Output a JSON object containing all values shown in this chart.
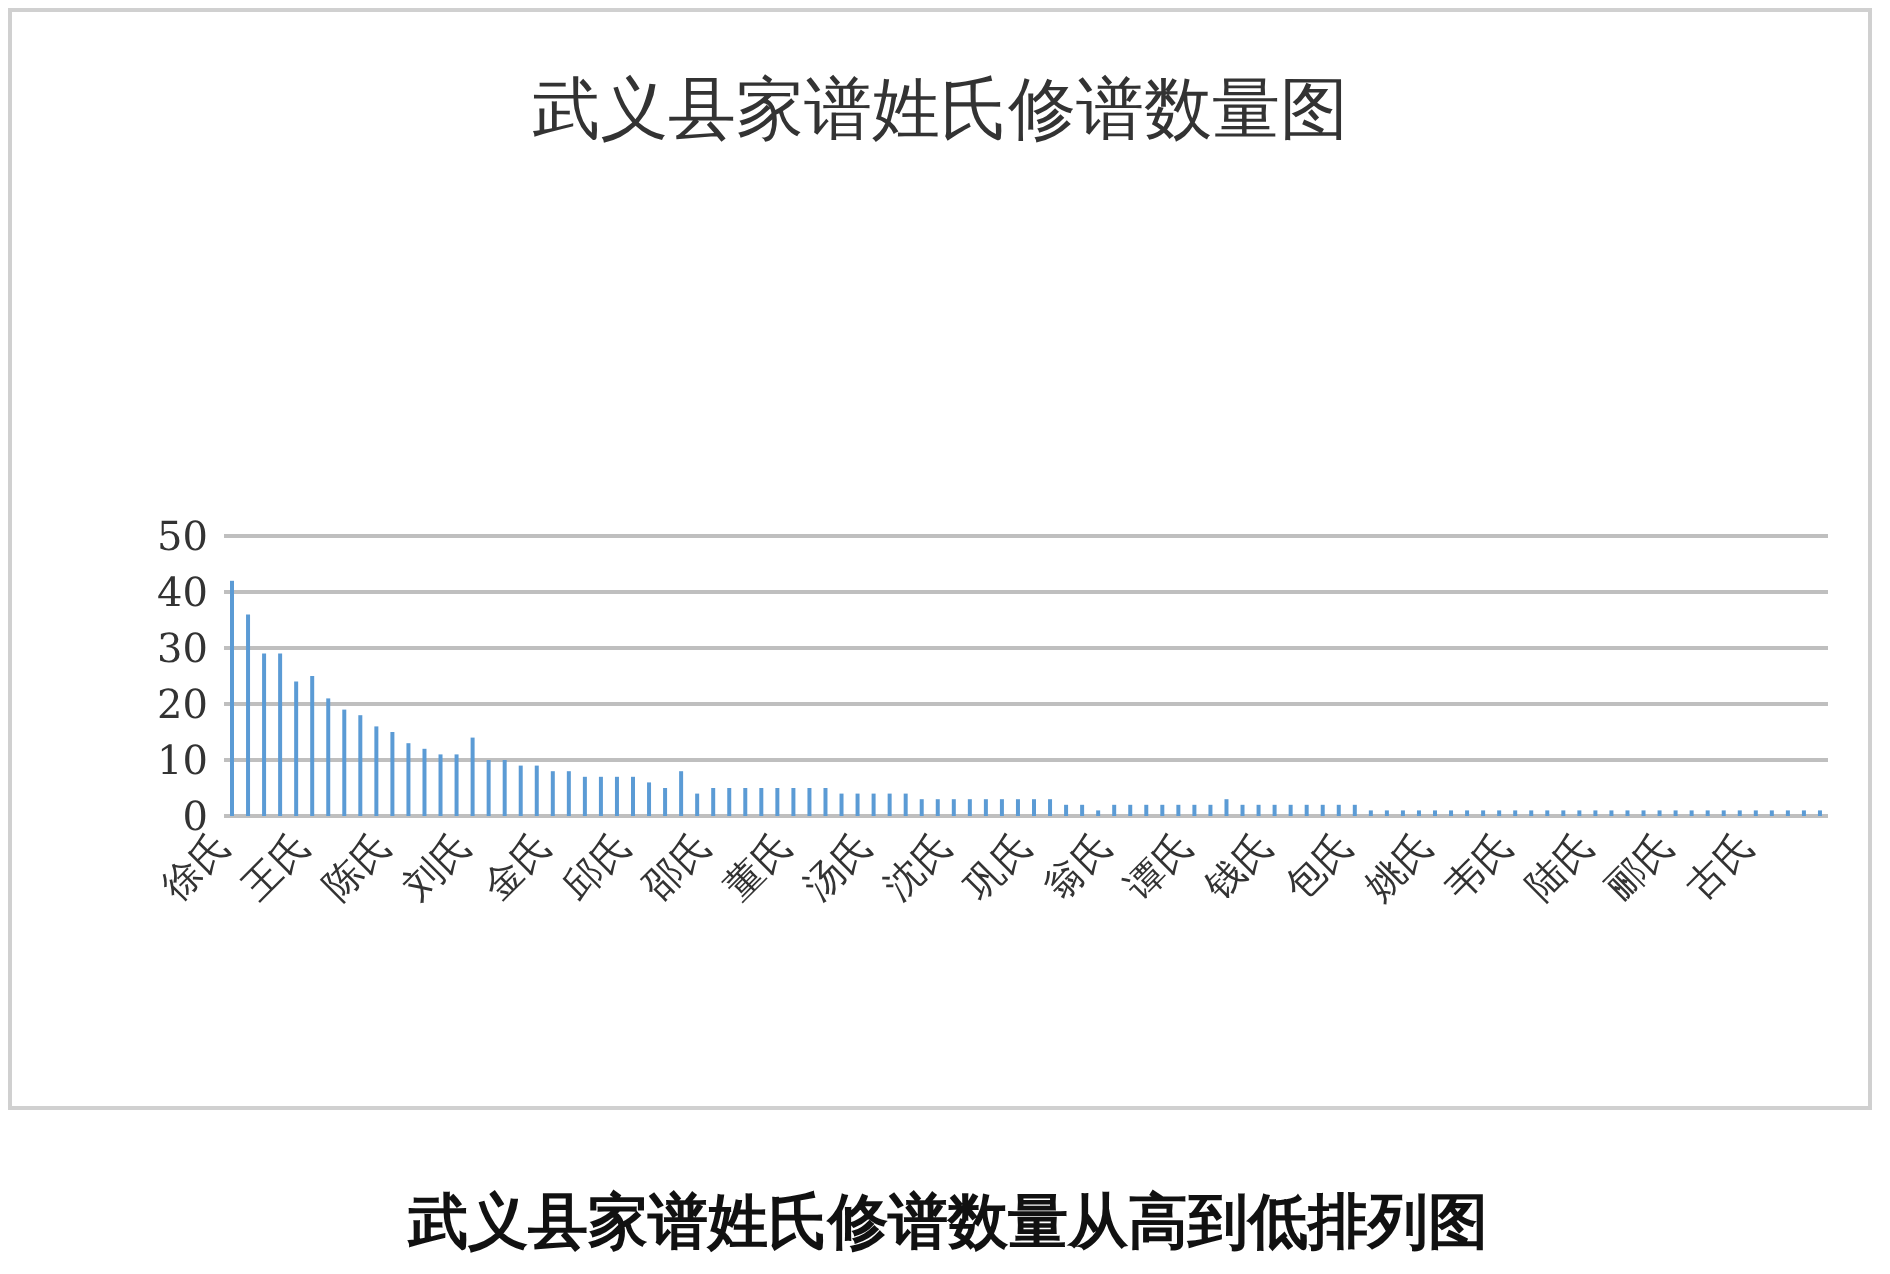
{
  "chart_data": {
    "type": "bar",
    "title": "武义县家谱姓氏修谱数量图",
    "categories": [
      "徐氏",
      null,
      null,
      null,
      null,
      "王氏",
      null,
      null,
      null,
      null,
      "陈氏",
      null,
      null,
      null,
      null,
      "刘氏",
      null,
      null,
      null,
      null,
      "金氏",
      null,
      null,
      null,
      null,
      "邱氏",
      null,
      null,
      null,
      null,
      "邵氏",
      null,
      null,
      null,
      null,
      "董氏",
      null,
      null,
      null,
      null,
      "汤氏",
      null,
      null,
      null,
      null,
      "沈氏",
      null,
      null,
      null,
      null,
      "巩氏",
      null,
      null,
      null,
      null,
      "翁氏",
      null,
      null,
      null,
      null,
      "谭氏",
      null,
      null,
      null,
      null,
      "钱氏",
      null,
      null,
      null,
      null,
      "包氏",
      null,
      null,
      null,
      null,
      "姚氏",
      null,
      null,
      null,
      null,
      "韦氏",
      null,
      null,
      null,
      null,
      "陆氏",
      null,
      null,
      null,
      null,
      "郦氏",
      null,
      null,
      null,
      null,
      "古氏",
      null,
      null,
      null,
      null
    ],
    "values": [
      42,
      36,
      29,
      29,
      24,
      25,
      21,
      19,
      18,
      16,
      15,
      13,
      12,
      11,
      11,
      14,
      10,
      10,
      9,
      9,
      8,
      8,
      7,
      7,
      7,
      7,
      6,
      5,
      8,
      4,
      5,
      5,
      5,
      5,
      5,
      5,
      5,
      5,
      4,
      4,
      4,
      4,
      4,
      3,
      3,
      3,
      3,
      3,
      3,
      3,
      3,
      3,
      2,
      2,
      1,
      2,
      2,
      2,
      2,
      2,
      2,
      2,
      3,
      2,
      2,
      2,
      2,
      2,
      2,
      2,
      2,
      1,
      1,
      1,
      1,
      1,
      1,
      1,
      1,
      1,
      1,
      1,
      1,
      1,
      1,
      1,
      1,
      1,
      1,
      1,
      1,
      1,
      1,
      1,
      1,
      1,
      1,
      1,
      1,
      1
    ],
    "color": "#5b9bd5",
    "ylim": [
      0,
      50
    ],
    "yticks": [
      0,
      10,
      20,
      30,
      40,
      50
    ],
    "grid": "y",
    "legend": false,
    "annotations": [
      "武义县家谱姓氏修谱数量从高到低排列图"
    ]
  }
}
